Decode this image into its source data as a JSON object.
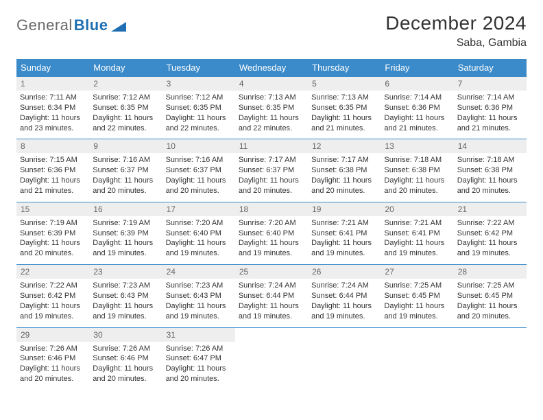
{
  "logo": {
    "text1": "General",
    "text2": "Blue"
  },
  "title": "December 2024",
  "location": "Saba, Gambia",
  "colors": {
    "header_bg": "#3b8bca",
    "header_text": "#ffffff",
    "daynum_bg": "#eeeeee",
    "daynum_text": "#666666",
    "rule": "#3b8bca",
    "body_text": "#333333",
    "logo_gray": "#6a6a6a",
    "logo_blue": "#1f6fb2",
    "page_bg": "#ffffff"
  },
  "weekday_labels": [
    "Sunday",
    "Monday",
    "Tuesday",
    "Wednesday",
    "Thursday",
    "Friday",
    "Saturday"
  ],
  "weeks": [
    [
      {
        "day": "1",
        "sunrise": "Sunrise: 7:11 AM",
        "sunset": "Sunset: 6:34 PM",
        "daylight": "Daylight: 11 hours and 23 minutes."
      },
      {
        "day": "2",
        "sunrise": "Sunrise: 7:12 AM",
        "sunset": "Sunset: 6:35 PM",
        "daylight": "Daylight: 11 hours and 22 minutes."
      },
      {
        "day": "3",
        "sunrise": "Sunrise: 7:12 AM",
        "sunset": "Sunset: 6:35 PM",
        "daylight": "Daylight: 11 hours and 22 minutes."
      },
      {
        "day": "4",
        "sunrise": "Sunrise: 7:13 AM",
        "sunset": "Sunset: 6:35 PM",
        "daylight": "Daylight: 11 hours and 22 minutes."
      },
      {
        "day": "5",
        "sunrise": "Sunrise: 7:13 AM",
        "sunset": "Sunset: 6:35 PM",
        "daylight": "Daylight: 11 hours and 21 minutes."
      },
      {
        "day": "6",
        "sunrise": "Sunrise: 7:14 AM",
        "sunset": "Sunset: 6:36 PM",
        "daylight": "Daylight: 11 hours and 21 minutes."
      },
      {
        "day": "7",
        "sunrise": "Sunrise: 7:14 AM",
        "sunset": "Sunset: 6:36 PM",
        "daylight": "Daylight: 11 hours and 21 minutes."
      }
    ],
    [
      {
        "day": "8",
        "sunrise": "Sunrise: 7:15 AM",
        "sunset": "Sunset: 6:36 PM",
        "daylight": "Daylight: 11 hours and 21 minutes."
      },
      {
        "day": "9",
        "sunrise": "Sunrise: 7:16 AM",
        "sunset": "Sunset: 6:37 PM",
        "daylight": "Daylight: 11 hours and 20 minutes."
      },
      {
        "day": "10",
        "sunrise": "Sunrise: 7:16 AM",
        "sunset": "Sunset: 6:37 PM",
        "daylight": "Daylight: 11 hours and 20 minutes."
      },
      {
        "day": "11",
        "sunrise": "Sunrise: 7:17 AM",
        "sunset": "Sunset: 6:37 PM",
        "daylight": "Daylight: 11 hours and 20 minutes."
      },
      {
        "day": "12",
        "sunrise": "Sunrise: 7:17 AM",
        "sunset": "Sunset: 6:38 PM",
        "daylight": "Daylight: 11 hours and 20 minutes."
      },
      {
        "day": "13",
        "sunrise": "Sunrise: 7:18 AM",
        "sunset": "Sunset: 6:38 PM",
        "daylight": "Daylight: 11 hours and 20 minutes."
      },
      {
        "day": "14",
        "sunrise": "Sunrise: 7:18 AM",
        "sunset": "Sunset: 6:38 PM",
        "daylight": "Daylight: 11 hours and 20 minutes."
      }
    ],
    [
      {
        "day": "15",
        "sunrise": "Sunrise: 7:19 AM",
        "sunset": "Sunset: 6:39 PM",
        "daylight": "Daylight: 11 hours and 20 minutes."
      },
      {
        "day": "16",
        "sunrise": "Sunrise: 7:19 AM",
        "sunset": "Sunset: 6:39 PM",
        "daylight": "Daylight: 11 hours and 19 minutes."
      },
      {
        "day": "17",
        "sunrise": "Sunrise: 7:20 AM",
        "sunset": "Sunset: 6:40 PM",
        "daylight": "Daylight: 11 hours and 19 minutes."
      },
      {
        "day": "18",
        "sunrise": "Sunrise: 7:20 AM",
        "sunset": "Sunset: 6:40 PM",
        "daylight": "Daylight: 11 hours and 19 minutes."
      },
      {
        "day": "19",
        "sunrise": "Sunrise: 7:21 AM",
        "sunset": "Sunset: 6:41 PM",
        "daylight": "Daylight: 11 hours and 19 minutes."
      },
      {
        "day": "20",
        "sunrise": "Sunrise: 7:21 AM",
        "sunset": "Sunset: 6:41 PM",
        "daylight": "Daylight: 11 hours and 19 minutes."
      },
      {
        "day": "21",
        "sunrise": "Sunrise: 7:22 AM",
        "sunset": "Sunset: 6:42 PM",
        "daylight": "Daylight: 11 hours and 19 minutes."
      }
    ],
    [
      {
        "day": "22",
        "sunrise": "Sunrise: 7:22 AM",
        "sunset": "Sunset: 6:42 PM",
        "daylight": "Daylight: 11 hours and 19 minutes."
      },
      {
        "day": "23",
        "sunrise": "Sunrise: 7:23 AM",
        "sunset": "Sunset: 6:43 PM",
        "daylight": "Daylight: 11 hours and 19 minutes."
      },
      {
        "day": "24",
        "sunrise": "Sunrise: 7:23 AM",
        "sunset": "Sunset: 6:43 PM",
        "daylight": "Daylight: 11 hours and 19 minutes."
      },
      {
        "day": "25",
        "sunrise": "Sunrise: 7:24 AM",
        "sunset": "Sunset: 6:44 PM",
        "daylight": "Daylight: 11 hours and 19 minutes."
      },
      {
        "day": "26",
        "sunrise": "Sunrise: 7:24 AM",
        "sunset": "Sunset: 6:44 PM",
        "daylight": "Daylight: 11 hours and 19 minutes."
      },
      {
        "day": "27",
        "sunrise": "Sunrise: 7:25 AM",
        "sunset": "Sunset: 6:45 PM",
        "daylight": "Daylight: 11 hours and 19 minutes."
      },
      {
        "day": "28",
        "sunrise": "Sunrise: 7:25 AM",
        "sunset": "Sunset: 6:45 PM",
        "daylight": "Daylight: 11 hours and 20 minutes."
      }
    ],
    [
      {
        "day": "29",
        "sunrise": "Sunrise: 7:26 AM",
        "sunset": "Sunset: 6:46 PM",
        "daylight": "Daylight: 11 hours and 20 minutes."
      },
      {
        "day": "30",
        "sunrise": "Sunrise: 7:26 AM",
        "sunset": "Sunset: 6:46 PM",
        "daylight": "Daylight: 11 hours and 20 minutes."
      },
      {
        "day": "31",
        "sunrise": "Sunrise: 7:26 AM",
        "sunset": "Sunset: 6:47 PM",
        "daylight": "Daylight: 11 hours and 20 minutes."
      },
      null,
      null,
      null,
      null
    ]
  ]
}
